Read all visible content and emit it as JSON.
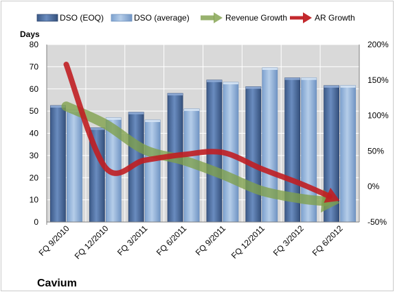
{
  "chart_data": {
    "type": "bar",
    "company": "Cavium",
    "y_left_label": "Days",
    "ylim_left": [
      0,
      80
    ],
    "y_left_ticks": [
      "0",
      "10",
      "20",
      "30",
      "40",
      "50",
      "60",
      "70",
      "80"
    ],
    "ylim_right": [
      -0.5,
      2.0
    ],
    "y_right_ticks": [
      "-50%",
      "0%",
      "50%",
      "100%",
      "150%",
      "200%"
    ],
    "categories": [
      "FQ 9/2010",
      "FQ 12/2010",
      "FQ 3/2011",
      "FQ 6/2011",
      "FQ 9/2011",
      "FQ 12/2011",
      "FQ 3/2012",
      "FQ 6/2012"
    ],
    "series": [
      {
        "name": "DSO (EOQ)",
        "type": "bar",
        "axis": "left",
        "color": "#4a6a9a",
        "values": [
          52.5,
          42.5,
          49.5,
          58,
          64,
          61,
          65,
          61.5
        ]
      },
      {
        "name": "DSO (average)",
        "type": "bar",
        "axis": "left",
        "color": "#8fb2dc",
        "values": [
          50.5,
          47,
          46,
          51,
          63,
          69.5,
          65,
          61.5
        ]
      },
      {
        "name": "Revenue Growth",
        "type": "line",
        "axis": "right",
        "color": "#7fa04a",
        "values": [
          1.13,
          0.88,
          0.52,
          0.37,
          0.17,
          -0.06,
          -0.17,
          -0.23
        ]
      },
      {
        "name": "AR Growth",
        "type": "line",
        "axis": "right",
        "color": "#c01e22",
        "values": [
          1.72,
          0.27,
          0.37,
          0.45,
          0.48,
          0.25,
          0.04,
          -0.2
        ]
      }
    ],
    "grid": true,
    "legend_position": "top"
  }
}
